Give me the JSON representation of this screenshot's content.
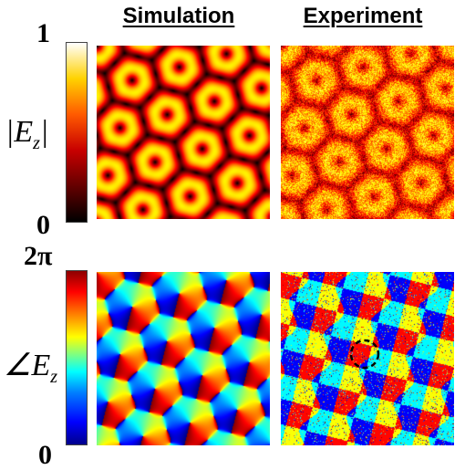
{
  "titles": {
    "simulation": "Simulation",
    "experiment": "Experiment"
  },
  "amplitude": {
    "quantity": "|E_z|",
    "tick_max": "1",
    "tick_min": "0",
    "colormap": "hot"
  },
  "phase": {
    "quantity": "∠E_z",
    "tick_max": "2π",
    "tick_min": "0",
    "colormap": "jet"
  },
  "colors": {
    "phase_marker": "#000000"
  }
}
